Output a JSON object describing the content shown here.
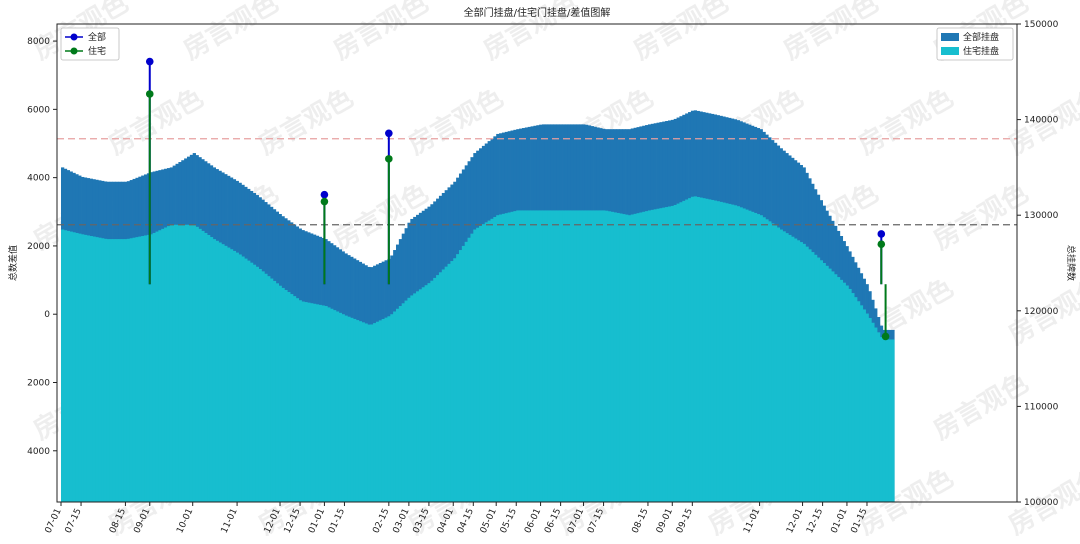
{
  "chart_data": {
    "type": "bar",
    "title": "全部门挂盘/住宅门挂盘/差值图解",
    "ylabel_left": "总数差值",
    "ylabel_right": "总挂牌数",
    "watermark_text": "房言观色",
    "left_axis": {
      "ylim": [
        -5500,
        8500
      ],
      "ticks": [
        -4000,
        -2000,
        0,
        2000,
        4000,
        6000,
        8000
      ],
      "tick_labels": [
        "4000",
        "2000",
        "0",
        "2000",
        "4000",
        "6000",
        "8000"
      ]
    },
    "right_axis": {
      "ylim": [
        100000,
        150000
      ],
      "ticks": [
        100000,
        110000,
        120000,
        130000,
        140000,
        150000
      ],
      "tick_labels": [
        "100000",
        "110000",
        "120000",
        "130000",
        "140000",
        "150000"
      ]
    },
    "x_range": [
      "07-01",
      "04-30"
    ],
    "x_tick_labels": [
      "07-01",
      "07-15",
      "08-15",
      "09-01",
      "10-01",
      "11-01",
      "12-01",
      "12-15",
      "01-01",
      "01-15",
      "02-15",
      "03-01",
      "03-15",
      "04-01",
      "04-15",
      "05-01",
      "05-15",
      "06-01",
      "06-15",
      "07-01",
      "07-15",
      "08-15",
      "09-01",
      "09-15",
      "11-01",
      "12-01",
      "12-15",
      "01-01",
      "01-15"
    ],
    "legend_left": [
      {
        "name": "全部",
        "color": "#0000cc"
      },
      {
        "name": "住宅",
        "color": "#007a1a"
      }
    ],
    "legend_right": [
      {
        "name": "全部挂盘",
        "color": "#1f77b4"
      },
      {
        "name": "住宅挂盘",
        "color": "#17becf"
      }
    ],
    "reference_lines": [
      {
        "axis": "right",
        "value": 138000,
        "color": "#e8a0a0"
      },
      {
        "axis": "right",
        "value": 129000,
        "color": "#666666"
      }
    ],
    "series_all_listings": {
      "name": "全部挂盘",
      "color": "#1f77b4",
      "x": [
        "07-01",
        "07-15",
        "08-01",
        "08-15",
        "09-01",
        "09-15",
        "10-01",
        "10-15",
        "11-01",
        "11-15",
        "12-01",
        "12-15",
        "01-01",
        "01-15",
        "02-01",
        "02-15",
        "03-01",
        "03-15",
        "04-01",
        "04-15",
        "05-01",
        "05-15",
        "06-01",
        "06-15",
        "07-01",
        "07-15",
        "08-01",
        "08-15",
        "09-01",
        "09-15",
        "10-01",
        "10-15",
        "11-01",
        "11-15",
        "12-01",
        "12-15",
        "01-01",
        "01-15",
        "01-25"
      ],
      "values": [
        135000,
        134000,
        133500,
        133500,
        134500,
        135000,
        136500,
        135000,
        133500,
        132000,
        130000,
        128500,
        127500,
        126000,
        124500,
        125500,
        129500,
        131000,
        133500,
        136500,
        138500,
        139000,
        139500,
        139500,
        139500,
        139000,
        139000,
        139500,
        140000,
        141000,
        140500,
        140000,
        139000,
        137000,
        135000,
        131000,
        126500,
        122500,
        118000
      ]
    },
    "series_residential_listings": {
      "name": "住宅挂盘",
      "color": "#17becf",
      "x": [
        "07-01",
        "07-15",
        "08-01",
        "08-15",
        "09-01",
        "09-15",
        "10-01",
        "10-15",
        "11-01",
        "11-15",
        "12-01",
        "12-15",
        "01-01",
        "01-15",
        "02-01",
        "02-15",
        "03-01",
        "03-15",
        "04-01",
        "04-15",
        "05-01",
        "05-15",
        "06-01",
        "06-15",
        "07-01",
        "07-15",
        "08-01",
        "08-15",
        "09-01",
        "09-15",
        "10-01",
        "10-15",
        "11-01",
        "11-15",
        "12-01",
        "12-15",
        "01-01",
        "01-15",
        "01-25"
      ],
      "values": [
        128500,
        128000,
        127500,
        127500,
        128000,
        129000,
        129000,
        127500,
        126000,
        124500,
        122500,
        121000,
        120500,
        119500,
        118500,
        119500,
        121500,
        123000,
        125500,
        128500,
        130000,
        130500,
        130500,
        130500,
        130500,
        130500,
        130000,
        130500,
        131000,
        132000,
        131500,
        131000,
        130000,
        128500,
        127000,
        125000,
        122500,
        119500,
        117000
      ]
    },
    "stem_points": [
      {
        "series": "全部",
        "x": "09-01",
        "value": 7400
      },
      {
        "series": "住宅",
        "x": "09-01",
        "value": 6450
      },
      {
        "series": "全部",
        "x": "01-01",
        "value": 3500
      },
      {
        "series": "住宅",
        "x": "01-01",
        "value": 3300
      },
      {
        "series": "全部",
        "x": "02-15",
        "value": 5300
      },
      {
        "series": "住宅",
        "x": "02-15",
        "value": 4550
      },
      {
        "series": "全部",
        "x": "01-25",
        "value": 2350
      },
      {
        "series": "住宅",
        "x": "01-25",
        "value": 2050
      },
      {
        "series": "住宅",
        "x": "01-28",
        "value": -650
      }
    ]
  }
}
